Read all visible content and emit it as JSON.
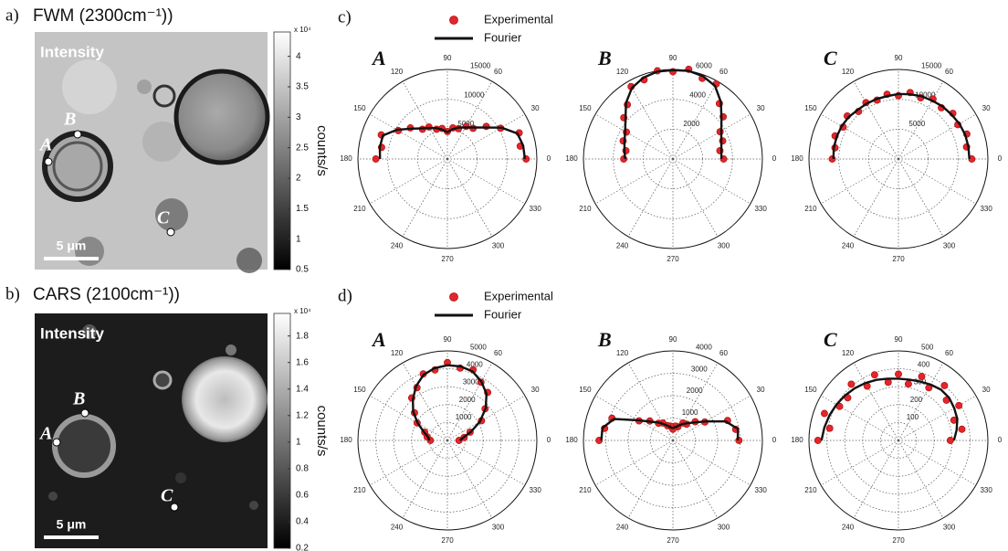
{
  "chart_data": [
    {
      "type": "image",
      "panel_label": "a)",
      "title": "FWM (2300cm⁻¹))",
      "overlay_label": "Intensity",
      "scale_bar": "5 μm",
      "scheme": "bright",
      "points": [
        "A",
        "B",
        "C"
      ],
      "colorbar": {
        "clim": [
          0.5,
          4.4
        ],
        "ticks": [
          0.5,
          1,
          1.5,
          2,
          2.5,
          3,
          3.5,
          4
        ],
        "exponent": "x 10⁴",
        "label": "counts/s"
      }
    },
    {
      "type": "image",
      "panel_label": "b)",
      "title": "CARS (2100cm⁻¹))",
      "overlay_label": "Intensity",
      "scale_bar": "5 μm",
      "scheme": "dark",
      "points": [
        "A",
        "B",
        "C"
      ],
      "colorbar": {
        "clim": [
          0.2,
          1.97
        ],
        "ticks": [
          0.2,
          0.4,
          0.6,
          0.8,
          1,
          1.2,
          1.4,
          1.6,
          1.8
        ],
        "exponent": "x 10⁴",
        "label": "counts/s"
      }
    },
    {
      "type": "polar",
      "panel_label": "c)",
      "legend": [
        {
          "name": "Experimental",
          "color": "#e3262b"
        },
        {
          "name": "Fourier",
          "color": "#111111"
        }
      ],
      "angle_ticks": [
        0,
        30,
        60,
        90,
        120,
        150,
        180,
        210,
        240,
        270,
        300,
        330
      ],
      "plots": [
        {
          "title": "A",
          "rlim": [
            0,
            15000
          ],
          "rticks": [
            5000,
            10000,
            15000
          ],
          "theta": [
            0,
            10,
            20,
            30,
            40,
            50,
            60,
            70,
            80,
            90,
            100,
            110,
            120,
            130,
            140,
            150,
            160,
            170,
            180
          ],
          "experimental": [
            13200,
            12400,
            12800,
            10300,
            8500,
            6700,
            6300,
            5400,
            5300,
            4600,
            5200,
            5300,
            6200,
            6500,
            8100,
            9500,
            11800,
            11200,
            12000
          ],
          "fourier": [
            13000,
            12900,
            12500,
            10500,
            8200,
            6900,
            6100,
            5600,
            5100,
            4500,
            5000,
            5500,
            6000,
            6700,
            7900,
            9800,
            11500,
            11500,
            11300
          ]
        },
        {
          "title": "B",
          "rlim": [
            0,
            6000
          ],
          "rticks": [
            2000,
            4000,
            6000
          ],
          "theta": [
            0,
            10,
            20,
            30,
            40,
            50,
            60,
            70,
            80,
            90,
            100,
            110,
            120,
            130,
            140,
            150,
            160,
            170,
            180
          ],
          "experimental": [
            3400,
            3200,
            3550,
            3650,
            4400,
            4850,
            5800,
            5750,
            6100,
            5850,
            6000,
            5650,
            5600,
            4750,
            4300,
            3600,
            3550,
            3200,
            3300
          ],
          "fourier": [
            3250,
            3300,
            3450,
            3750,
            4250,
            5000,
            5650,
            5900,
            6000,
            5950,
            5950,
            5800,
            5500,
            4900,
            4150,
            3700,
            3450,
            3300,
            3200
          ]
        },
        {
          "title": "C",
          "rlim": [
            0,
            15000
          ],
          "rticks": [
            5000,
            10000,
            15000
          ],
          "theta": [
            0,
            10,
            20,
            30,
            40,
            50,
            60,
            70,
            80,
            90,
            100,
            110,
            120,
            130,
            140,
            150,
            160,
            170,
            180
          ],
          "experimental": [
            12300,
            11600,
            12200,
            11500,
            11900,
            11200,
            11600,
            10900,
            11300,
            10600,
            11000,
            10500,
            10900,
            10400,
            11200,
            10700,
            11300,
            10800,
            11100
          ],
          "fourier": [
            11900,
            11900,
            11900,
            11800,
            11600,
            11500,
            11300,
            11200,
            11000,
            10900,
            10700,
            10700,
            10700,
            10700,
            10900,
            11000,
            11000,
            11000,
            10900
          ]
        }
      ]
    },
    {
      "type": "polar",
      "panel_label": "d)",
      "legend": [
        {
          "name": "Experimental",
          "color": "#e3262b"
        },
        {
          "name": "Fourier",
          "color": "#111111"
        }
      ],
      "angle_ticks": [
        0,
        30,
        60,
        90,
        120,
        150,
        180,
        210,
        240,
        270,
        300,
        330
      ],
      "plots": [
        {
          "title": "A",
          "rlim": [
            0,
            5000
          ],
          "rticks": [
            1000,
            2000,
            3000,
            4000,
            5000
          ],
          "theta": [
            0,
            10,
            20,
            30,
            40,
            50,
            60,
            70,
            80,
            90,
            100,
            110,
            120,
            130,
            140,
            150,
            160,
            170,
            180
          ],
          "experimental": [
            650,
            950,
            1350,
            2200,
            2750,
            3500,
            3750,
            4200,
            4100,
            4350,
            4000,
            3950,
            3400,
            3100,
            2400,
            1950,
            1350,
            1150,
            950
          ],
          "fourier": [
            700,
            900,
            1400,
            2100,
            2800,
            3400,
            3800,
            4100,
            4200,
            4200,
            4100,
            3900,
            3500,
            3000,
            2500,
            1900,
            1400,
            1100,
            1000
          ]
        },
        {
          "title": "B",
          "rlim": [
            0,
            4000
          ],
          "rticks": [
            1000,
            2000,
            3000,
            4000
          ],
          "theta": [
            0,
            10,
            20,
            30,
            40,
            50,
            60,
            70,
            80,
            90,
            100,
            110,
            120,
            130,
            140,
            150,
            160,
            170,
            180
          ],
          "experimental": [
            2950,
            2850,
            2600,
            1650,
            1300,
            950,
            900,
            650,
            650,
            500,
            650,
            700,
            900,
            1000,
            1350,
            1750,
            2900,
            3100,
            3300
          ],
          "fourier": [
            2900,
            2950,
            2500,
            1700,
            1250,
            1000,
            850,
            700,
            600,
            550,
            600,
            700,
            850,
            1050,
            1300,
            1800,
            2800,
            3200,
            3200
          ]
        },
        {
          "title": "C",
          "rlim": [
            0,
            500
          ],
          "rticks": [
            100,
            200,
            300,
            400,
            500
          ],
          "theta": [
            0,
            10,
            20,
            30,
            40,
            50,
            60,
            70,
            80,
            90,
            100,
            110,
            120,
            130,
            140,
            150,
            160,
            170,
            180
          ],
          "experimental": [
            290,
            360,
            330,
            390,
            350,
            400,
            340,
            380,
            320,
            370,
            330,
            390,
            350,
            410,
            370,
            380,
            440,
            390,
            450
          ],
          "fourier": [
            310,
            330,
            350,
            360,
            370,
            370,
            360,
            350,
            345,
            345,
            350,
            360,
            370,
            380,
            390,
            400,
            410,
            420,
            430
          ]
        }
      ]
    }
  ]
}
